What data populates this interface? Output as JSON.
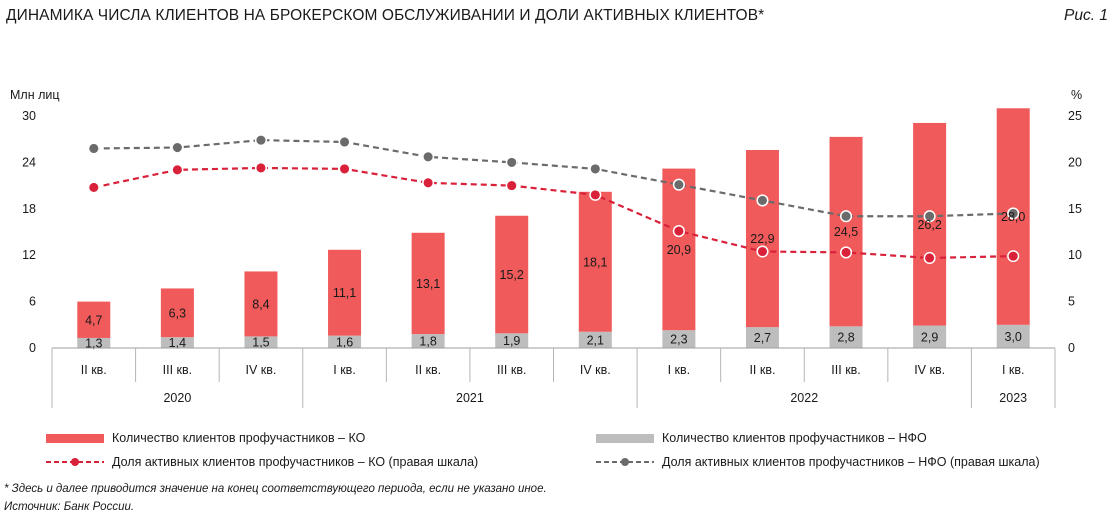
{
  "header": {
    "title": "ДИНАМИКА ЧИСЛА КЛИЕНТОВ НА БРОКЕРСКОМ ОБСЛУЖИВАНИИ И ДОЛИ АКТИВНЫХ КЛИЕНТОВ*",
    "figure_label": "Рис. 1"
  },
  "chart_data": {
    "type": "bar",
    "left_axis_label": "Млн лиц",
    "right_axis_label": "%",
    "left_ylim": [
      0,
      30
    ],
    "left_ticks": [
      "0",
      "6",
      "12",
      "18",
      "24",
      "30"
    ],
    "right_ylim": [
      0,
      25
    ],
    "right_ticks": [
      "0",
      "5",
      "10",
      "15",
      "20",
      "25"
    ],
    "categories": [
      "II кв.",
      "III кв.",
      "IV кв.",
      "I кв.",
      "II кв.",
      "III кв.",
      "IV кв.",
      "I кв.",
      "II кв.",
      "III кв.",
      "IV кв.",
      "I кв."
    ],
    "years": [
      {
        "label": "2020",
        "count": 3
      },
      {
        "label": "2021",
        "count": 4
      },
      {
        "label": "2022",
        "count": 4
      },
      {
        "label": "2023",
        "count": 1
      }
    ],
    "bars": [
      {
        "name": "Количество клиентов профучастников – КО",
        "color": "#f05a5a",
        "values": [
          4.7,
          6.3,
          8.4,
          11.1,
          13.1,
          15.2,
          18.1,
          20.9,
          22.9,
          24.5,
          26.2,
          28.0
        ],
        "labels": [
          "4,7",
          "6,3",
          "8,4",
          "11,1",
          "13,1",
          "15,2",
          "18,1",
          "20,9",
          "22,9",
          "24,5",
          "26,2",
          "28,0"
        ]
      },
      {
        "name": "Количество клиентов профучастников – НФО",
        "color": "#bdbdbd",
        "values": [
          1.3,
          1.4,
          1.5,
          1.6,
          1.8,
          1.9,
          2.1,
          2.3,
          2.7,
          2.8,
          2.9,
          3.0
        ],
        "labels": [
          "1,3",
          "1,4",
          "1,5",
          "1,6",
          "1,8",
          "1,9",
          "2,1",
          "2,3",
          "2,7",
          "2,8",
          "2,9",
          "3,0"
        ]
      }
    ],
    "lines": [
      {
        "name": "Доля активных клиентов профучастников – КО (правая шкала)",
        "color": "#d9213a",
        "values": [
          17.3,
          19.2,
          19.4,
          19.3,
          17.8,
          17.5,
          16.5,
          12.6,
          10.4,
          10.3,
          9.7,
          9.9
        ]
      },
      {
        "name": "Доля активных клиентов профучастников – НФО (правая шкала)",
        "color": "#6b6b6b",
        "values": [
          21.5,
          21.6,
          22.4,
          22.2,
          20.6,
          20.0,
          19.3,
          17.6,
          15.9,
          14.2,
          14.2,
          14.5
        ]
      }
    ],
    "grid": false,
    "legend_position": "bottom"
  },
  "footer": {
    "note": "* Здесь и далее приводится значение на конец соответствующего периода, если не указано иное.",
    "source": "Источник: Банк России."
  }
}
